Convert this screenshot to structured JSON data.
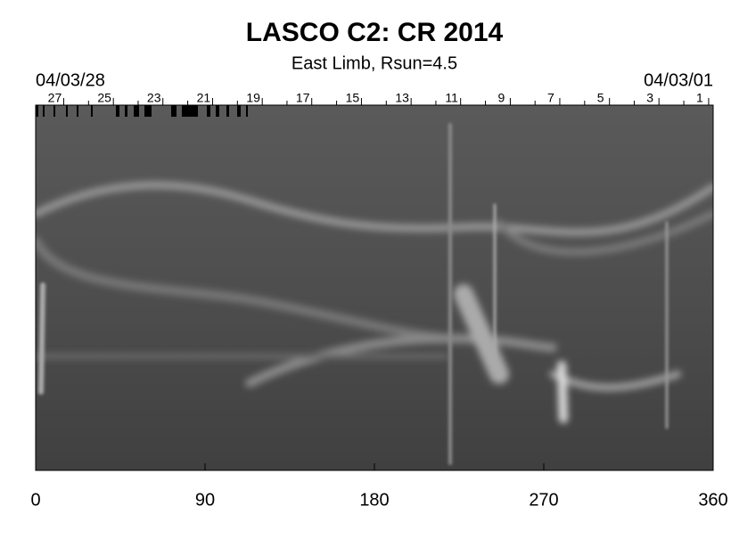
{
  "chart_data": {
    "type": "image",
    "title": "LASCO C2: CR 2014",
    "subtitle": "East Limb, Rsun=4.5",
    "start_date": "04/03/28",
    "end_date": "04/03/01",
    "xlim": [
      0,
      360
    ],
    "xticks": [
      0,
      90,
      180,
      270,
      360
    ],
    "top_ticks": [
      {
        "value": 14.9,
        "label": "27"
      },
      {
        "value": 41.3,
        "label": "25"
      },
      {
        "value": 67.6,
        "label": "23"
      },
      {
        "value": 94.0,
        "label": "21"
      },
      {
        "value": 120.4,
        "label": "19"
      },
      {
        "value": 146.7,
        "label": "17"
      },
      {
        "value": 173.1,
        "label": "15"
      },
      {
        "value": 199.5,
        "label": "13"
      },
      {
        "value": 225.8,
        "label": "11"
      },
      {
        "value": 252.2,
        "label": "9"
      },
      {
        "value": 278.5,
        "label": "7"
      },
      {
        "value": 304.9,
        "label": "5"
      },
      {
        "value": 331.2,
        "label": "3"
      },
      {
        "value": 357.6,
        "label": "1"
      }
    ]
  }
}
